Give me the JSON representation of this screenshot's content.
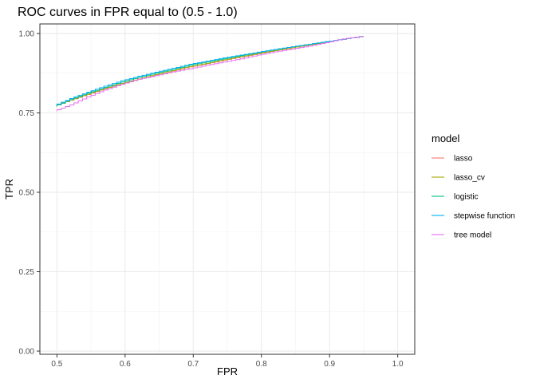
{
  "chart_data": {
    "type": "line",
    "title": "ROC curves in FPR equal to (0.5 - 1.0)",
    "xlabel": "FPR",
    "ylabel": "TPR",
    "xlim": [
      0.475,
      1.025
    ],
    "ylim": [
      -0.01,
      1.03
    ],
    "x_ticks": [
      0.5,
      0.6,
      0.7,
      0.8,
      0.9,
      1.0
    ],
    "x_tick_labels": [
      "0.5",
      "0.6",
      "0.7",
      "0.8",
      "0.9",
      "1.0"
    ],
    "y_ticks": [
      0.0,
      0.25,
      0.5,
      0.75,
      1.0
    ],
    "y_tick_labels": [
      "0.00",
      "0.25",
      "0.50",
      "0.75",
      "1.00"
    ],
    "grid": true,
    "legend": {
      "title": "model",
      "position": "right"
    },
    "series": [
      {
        "name": "lasso",
        "color": "#F8766D",
        "x": [
          0.5,
          0.525,
          0.55,
          0.575,
          0.6,
          0.625,
          0.65,
          0.675,
          0.7,
          0.725,
          0.75,
          0.775,
          0.8,
          0.825,
          0.85,
          0.875,
          0.9,
          0.925,
          0.95
        ],
        "y": [
          0.77,
          0.79,
          0.808,
          0.826,
          0.842,
          0.856,
          0.87,
          0.882,
          0.895,
          0.905,
          0.916,
          0.926,
          0.936,
          0.946,
          0.955,
          0.964,
          0.973,
          0.982,
          0.99
        ]
      },
      {
        "name": "lasso_cv",
        "color": "#A3A500",
        "x": [
          0.5,
          0.525,
          0.55,
          0.575,
          0.6,
          0.625,
          0.65,
          0.675,
          0.7,
          0.725,
          0.75,
          0.775,
          0.8,
          0.825,
          0.85,
          0.875,
          0.9,
          0.925,
          0.95
        ],
        "y": [
          0.77,
          0.791,
          0.809,
          0.827,
          0.843,
          0.857,
          0.871,
          0.883,
          0.896,
          0.906,
          0.917,
          0.927,
          0.937,
          0.946,
          0.955,
          0.964,
          0.973,
          0.982,
          0.99
        ]
      },
      {
        "name": "logistic",
        "color": "#00BF7D",
        "x": [
          0.5,
          0.525,
          0.55,
          0.575,
          0.6,
          0.625,
          0.65,
          0.675,
          0.7,
          0.725,
          0.75,
          0.775,
          0.8,
          0.825,
          0.85,
          0.875,
          0.9,
          0.925,
          0.95
        ],
        "y": [
          0.77,
          0.792,
          0.812,
          0.83,
          0.847,
          0.862,
          0.875,
          0.887,
          0.9,
          0.91,
          0.92,
          0.93,
          0.94,
          0.949,
          0.958,
          0.966,
          0.974,
          0.982,
          0.99
        ]
      },
      {
        "name": "stepwise function",
        "color": "#00B0F6",
        "x": [
          0.5,
          0.525,
          0.55,
          0.575,
          0.6,
          0.625,
          0.65,
          0.675,
          0.7,
          0.725,
          0.75,
          0.775,
          0.8,
          0.825,
          0.85,
          0.875,
          0.9,
          0.925,
          0.95
        ],
        "y": [
          0.772,
          0.795,
          0.815,
          0.834,
          0.851,
          0.865,
          0.878,
          0.89,
          0.903,
          0.913,
          0.923,
          0.932,
          0.941,
          0.95,
          0.958,
          0.966,
          0.974,
          0.982,
          0.99
        ]
      },
      {
        "name": "tree model",
        "color": "#E76BF3",
        "x": [
          0.5,
          0.525,
          0.55,
          0.575,
          0.6,
          0.625,
          0.65,
          0.675,
          0.7,
          0.725,
          0.75,
          0.775,
          0.8,
          0.825,
          0.85,
          0.875,
          0.9,
          0.925,
          0.95
        ],
        "y": [
          0.755,
          0.775,
          0.8,
          0.822,
          0.84,
          0.856,
          0.867,
          0.879,
          0.889,
          0.9,
          0.91,
          0.92,
          0.932,
          0.942,
          0.951,
          0.96,
          0.971,
          0.983,
          0.99
        ]
      }
    ]
  }
}
